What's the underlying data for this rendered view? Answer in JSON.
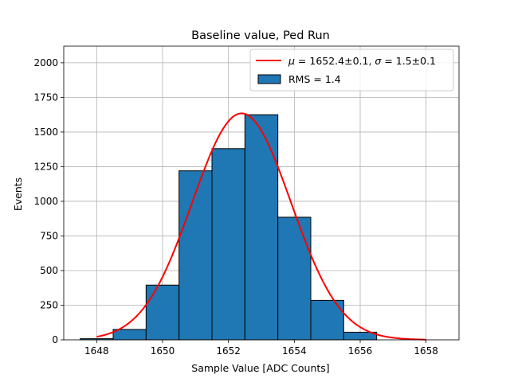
{
  "chart_data": {
    "type": "bar",
    "title": "Baseline value, Ped Run",
    "xlabel": "Sample Value [ADC Counts]",
    "ylabel": "Events",
    "xlim": [
      1647.0,
      1659.0
    ],
    "ylim": [
      0,
      2120
    ],
    "grid": true,
    "xticks": [
      1648,
      1650,
      1652,
      1654,
      1656,
      1658
    ],
    "yticks": [
      0,
      250,
      500,
      750,
      1000,
      1250,
      1500,
      1750,
      2000
    ],
    "histogram": {
      "name": "RMS = 1.4",
      "color": "#1f77b4",
      "edgecolor": "#000000",
      "bins": [
        {
          "lo": 1647.5,
          "hi": 1648.5,
          "count": 8
        },
        {
          "lo": 1648.5,
          "hi": 1649.5,
          "count": 75
        },
        {
          "lo": 1649.5,
          "hi": 1650.5,
          "count": 395
        },
        {
          "lo": 1650.5,
          "hi": 1651.5,
          "count": 1220
        },
        {
          "lo": 1651.5,
          "hi": 1652.5,
          "count": 1380
        },
        {
          "lo": 1652.5,
          "hi": 1653.5,
          "count": 1625
        },
        {
          "lo": 1653.5,
          "hi": 1654.5,
          "count": 885
        },
        {
          "lo": 1654.5,
          "hi": 1655.5,
          "count": 285
        },
        {
          "lo": 1655.5,
          "hi": 1656.5,
          "count": 55
        }
      ]
    },
    "fit": {
      "name": "μ = 1652.4±0.1, σ = 1.5±0.1",
      "color": "#ff0000",
      "mu": 1652.4,
      "sigma": 1.5,
      "amplitude": 1635,
      "x_range": [
        1648,
        1658
      ]
    },
    "legend": {
      "location": "top-right",
      "fit_label": {
        "mu_symbol": "μ",
        "mu_text": " = 1652.4±0.1, ",
        "sigma_symbol": "σ",
        "sigma_text": " = 1.5±0.1"
      },
      "hist_label": "RMS = 1.4"
    }
  }
}
